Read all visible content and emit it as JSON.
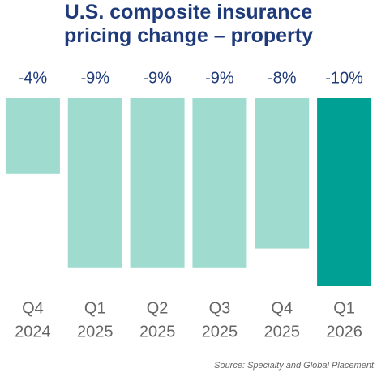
{
  "chart_data": {
    "type": "bar",
    "title": "U.S. composite insurance\npricing change – property",
    "categories": [
      [
        "Q4",
        "2024"
      ],
      [
        "Q1",
        "2025"
      ],
      [
        "Q2",
        "2025"
      ],
      [
        "Q3",
        "2025"
      ],
      [
        "Q4",
        "2025"
      ],
      [
        "Q1",
        "2026"
      ]
    ],
    "values": [
      -4,
      -9,
      -9,
      -9,
      -8,
      -10
    ],
    "value_labels": [
      "-4%",
      "-9%",
      "-9%",
      "-9%",
      "-8%",
      "-10%"
    ],
    "colors": [
      "#9fdccf",
      "#9fdccf",
      "#9fdccf",
      "#9fdccf",
      "#9fdccf",
      "#00a094"
    ],
    "source": "Source: Specialty and Global Placement"
  }
}
